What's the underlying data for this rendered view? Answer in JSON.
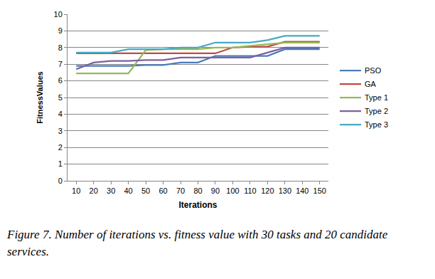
{
  "chart_data": {
    "type": "line",
    "x_label": "Iterations",
    "y_label": "FitnessValues",
    "caption": "Figure 7. Number of iterations vs. fitness value with 30 tasks and 20 candidate services.",
    "x": [
      10,
      20,
      30,
      40,
      50,
      60,
      70,
      80,
      90,
      100,
      110,
      120,
      130,
      140,
      150
    ],
    "xlim": [
      5,
      155
    ],
    "xticks": [
      10,
      20,
      30,
      40,
      50,
      60,
      70,
      80,
      90,
      100,
      110,
      120,
      130,
      140,
      150
    ],
    "ylim": [
      0,
      10
    ],
    "yticks": [
      0,
      1,
      2,
      3,
      4,
      5,
      6,
      7,
      8,
      9,
      10
    ],
    "grid": true,
    "legend": "right",
    "series": [
      {
        "name": "PSO",
        "color": "#4a7ebb",
        "values": [
          6.9,
          6.9,
          6.9,
          6.9,
          6.95,
          6.95,
          7.1,
          7.1,
          7.5,
          7.5,
          7.5,
          7.5,
          7.9,
          7.9,
          7.9
        ]
      },
      {
        "name": "GA",
        "color": "#be4b48",
        "values": [
          7.65,
          7.65,
          7.65,
          7.65,
          7.65,
          7.65,
          7.65,
          7.65,
          7.65,
          8.0,
          8.05,
          8.05,
          8.35,
          8.35,
          8.35
        ]
      },
      {
        "name": "Type 1",
        "color": "#98b954",
        "values": [
          6.45,
          6.45,
          6.45,
          6.45,
          7.85,
          7.9,
          7.9,
          7.9,
          8.0,
          8.0,
          8.1,
          8.2,
          8.3,
          8.3,
          8.3
        ]
      },
      {
        "name": "Type 2",
        "color": "#7d60a0",
        "values": [
          6.7,
          7.1,
          7.2,
          7.2,
          7.25,
          7.25,
          7.4,
          7.4,
          7.4,
          7.4,
          7.4,
          7.7,
          8.0,
          8.0,
          8.0
        ]
      },
      {
        "name": "Type 3",
        "color": "#46aac5",
        "values": [
          7.7,
          7.7,
          7.7,
          7.9,
          7.9,
          7.9,
          8.0,
          8.0,
          8.3,
          8.3,
          8.3,
          8.45,
          8.7,
          8.7,
          8.7
        ]
      }
    ]
  }
}
